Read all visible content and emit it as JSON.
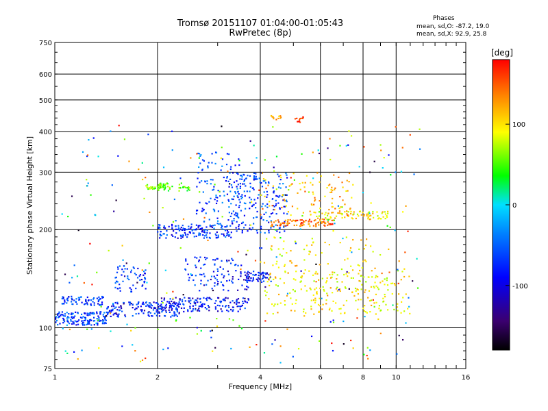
{
  "header": {
    "title_line1": "Tromsø 20151107 01:04:00-01:05:43",
    "title_line2": "RwPretec (8p)"
  },
  "phase_box": {
    "title": "Phases",
    "line_o": "mean, sd,O: -87.2, 19.0",
    "line_x": "mean, sd,X:  92.9, 25.8"
  },
  "colorbar": {
    "label": "[deg]",
    "range": [
      -180,
      180
    ],
    "ticks": [
      {
        "value": 100,
        "label": "100"
      },
      {
        "value": 0,
        "label": "0"
      },
      {
        "value": -100,
        "label": "-100"
      }
    ]
  },
  "chart_data": {
    "type": "scatter",
    "title": "Tromsø 20151107 01:04:00-01:05:43",
    "subtitle": "RwPretec (8p)",
    "xlabel": "Frequency [MHz]",
    "ylabel": "Stationary phase Virtual Height [km]",
    "xscale": "log",
    "yscale": "log",
    "xlim": [
      1,
      16
    ],
    "ylim": [
      75,
      750
    ],
    "grid": true,
    "xticks": [
      1,
      2,
      4,
      6,
      8,
      10,
      16
    ],
    "yticks": [
      75,
      100,
      200,
      300,
      400,
      500,
      600,
      750
    ],
    "color_by": "phase (deg)",
    "clusters": [
      {
        "f": [
          1.0,
          1.42
        ],
        "h": [
          102,
          112
        ],
        "phase": -95,
        "density": 150
      },
      {
        "f": [
          1.05,
          1.38
        ],
        "h": [
          117,
          125
        ],
        "phase": -100,
        "density": 70
      },
      {
        "f": [
          1.42,
          2.35
        ],
        "h": [
          108,
          120
        ],
        "phase": -110,
        "density": 160
      },
      {
        "f": [
          2.0,
          3.7
        ],
        "h": [
          112,
          124
        ],
        "phase": -110,
        "density": 160
      },
      {
        "f": [
          1.5,
          1.85
        ],
        "h": [
          128,
          155
        ],
        "phase": -100,
        "density": 60
      },
      {
        "f": [
          1.85,
          2.1
        ],
        "h": [
          265,
          275
        ],
        "phase": 50,
        "density": 35
      },
      {
        "f": [
          2.0,
          2.55
        ],
        "h": [
          262,
          278
        ],
        "phase": 35,
        "density": 35
      },
      {
        "f": [
          2.0,
          3.3
        ],
        "h": [
          188,
          208
        ],
        "phase": -100,
        "density": 140
      },
      {
        "f": [
          2.6,
          3.6
        ],
        "h": [
          205,
          350
        ],
        "phase": -90,
        "density": 120
      },
      {
        "f": [
          3.2,
          4.8
        ],
        "h": [
          195,
          300
        ],
        "phase": -95,
        "density": 200
      },
      {
        "f": [
          2.4,
          3.7
        ],
        "h": [
          130,
          165
        ],
        "phase": -110,
        "density": 100
      },
      {
        "f": [
          3.6,
          4.3
        ],
        "h": [
          138,
          148
        ],
        "phase": -110,
        "density": 60
      },
      {
        "f": [
          4.3,
          6.6
        ],
        "h": [
          205,
          215
        ],
        "phase": 140,
        "density": 90
      },
      {
        "f": [
          5.6,
          9.5
        ],
        "h": [
          215,
          228
        ],
        "phase": 95,
        "density": 80
      },
      {
        "f": [
          4.0,
          7.5
        ],
        "h": [
          220,
          300
        ],
        "phase": 120,
        "density": 90
      },
      {
        "f": [
          4.0,
          9.0
        ],
        "h": [
          110,
          190
        ],
        "phase": 100,
        "density": 160
      },
      {
        "f": [
          5.0,
          11.0
        ],
        "h": [
          110,
          150
        ],
        "phase": 90,
        "density": 130
      },
      {
        "f": [
          4.3,
          4.6
        ],
        "h": [
          435,
          450
        ],
        "phase": 110,
        "density": 12
      },
      {
        "f": [
          5.0,
          5.4
        ],
        "h": [
          425,
          445
        ],
        "phase": 175,
        "density": 12
      },
      {
        "f": [
          1.05,
          12.0
        ],
        "h": [
          78,
          420
        ],
        "phase": 0,
        "density": 300
      }
    ]
  }
}
